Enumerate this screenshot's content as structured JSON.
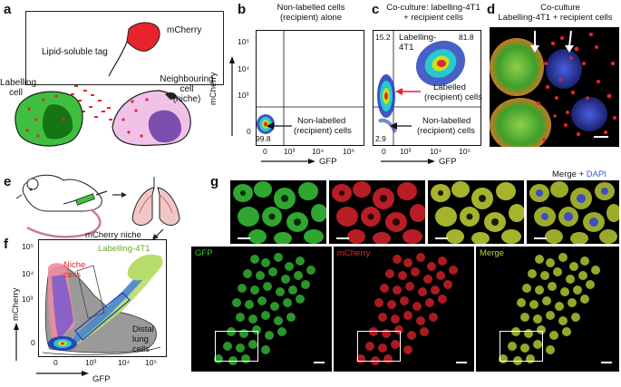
{
  "panels": {
    "a": {
      "label": "a",
      "lipid_tag": "Lipid-soluble tag",
      "mcherry": "mCherry",
      "labelling_cell": [
        "Labelling",
        "cell"
      ],
      "neighbouring_cell": [
        "Neighbouring",
        "cell",
        "(niche)"
      ]
    },
    "b": {
      "label": "b",
      "title": [
        "Non-labelled cells",
        "(recipient) alone"
      ],
      "ylabel": "mCherry",
      "xlabel": "GFP",
      "quad_value": "99.8",
      "pop_label": [
        "Non-labelled",
        "(recipient) cells"
      ],
      "yticks": [
        "10⁵",
        "10⁴",
        "10³",
        "0"
      ],
      "xticks": [
        "0",
        "10³",
        "10⁴",
        "10⁵"
      ]
    },
    "c": {
      "label": "c",
      "title": [
        "Co-culture: labelling-4T1",
        "+ recipient cells"
      ],
      "xlabel": "GFP",
      "ul_value": "15.2",
      "ur_value": "81.8",
      "ll_value": "2.9",
      "labelling_4t1": [
        "Labelling-",
        "4T1"
      ],
      "labelled_recipient": [
        "Labelled",
        "(recipient) cells"
      ],
      "nonlabelled_recipient": [
        "Non-labelled",
        "(recipient) cells"
      ],
      "xticks": [
        "0",
        "10³",
        "10⁴",
        "10⁵"
      ]
    },
    "d": {
      "label": "d",
      "title": [
        "Co-culture",
        "Labelling-4T1 + recipient cells"
      ]
    },
    "e": {
      "label": "e",
      "mcherry_niche": "mCherry niche"
    },
    "f": {
      "label": "f",
      "ylabel": "mCherry",
      "xlabel": "GFP",
      "labelling_4t1": "Labelling-4T1",
      "niche_cells": [
        "Niche",
        "cells"
      ],
      "distal_lung": [
        "Distal",
        "lung",
        "cells"
      ],
      "yticks": [
        "10⁵",
        "10⁴",
        "10³",
        "0"
      ],
      "xticks": [
        "0",
        "10³",
        "10⁴",
        "10⁵"
      ]
    },
    "g": {
      "label": "g",
      "merge_dapi_prefix": "Merge + ",
      "merge_dapi_suffix": "DAPI",
      "gfp": "GFP",
      "mcherry": "mCherry",
      "merge": "Merge"
    }
  },
  "colors": {
    "gfp": "#39c83a",
    "mcherry": "#e8232b",
    "merge": "#b8d832",
    "dapi": "#3a5ad8"
  }
}
